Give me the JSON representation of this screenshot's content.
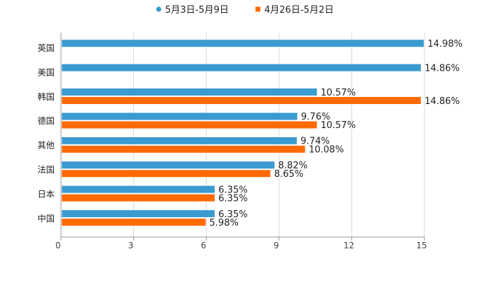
{
  "chart_data": {
    "type": "bar",
    "orientation": "horizontal",
    "title": "",
    "xlabel": "",
    "ylabel": "",
    "categories": [
      "英国",
      "美国",
      "韩国",
      "德国",
      "其他",
      "法国",
      "日本",
      "中国"
    ],
    "series": [
      {
        "name": "5月3日-5月9日",
        "color": "#3a9bd0",
        "values": [
          14.98,
          14.86,
          10.57,
          9.76,
          9.74,
          8.82,
          6.35,
          6.35
        ],
        "labels": [
          "14.98%",
          "14.86%",
          "10.57%",
          "9.76%",
          "9.74%",
          "8.82%",
          "6.35%",
          "6.35%"
        ]
      },
      {
        "name": "4月26日-5月2日",
        "color": "#ff6a00",
        "values": [
          null,
          null,
          14.86,
          10.57,
          10.08,
          8.65,
          6.35,
          5.98
        ],
        "labels": [
          null,
          null,
          "14.86%",
          "10.57%",
          "10.08%",
          "8.65%",
          "6.35%",
          "5.98%"
        ]
      }
    ],
    "xlim": [
      0,
      15
    ],
    "xticks": [
      "0",
      "3",
      "6",
      "9",
      "12",
      "15"
    ],
    "grid": true,
    "legend_position": "top-center"
  }
}
